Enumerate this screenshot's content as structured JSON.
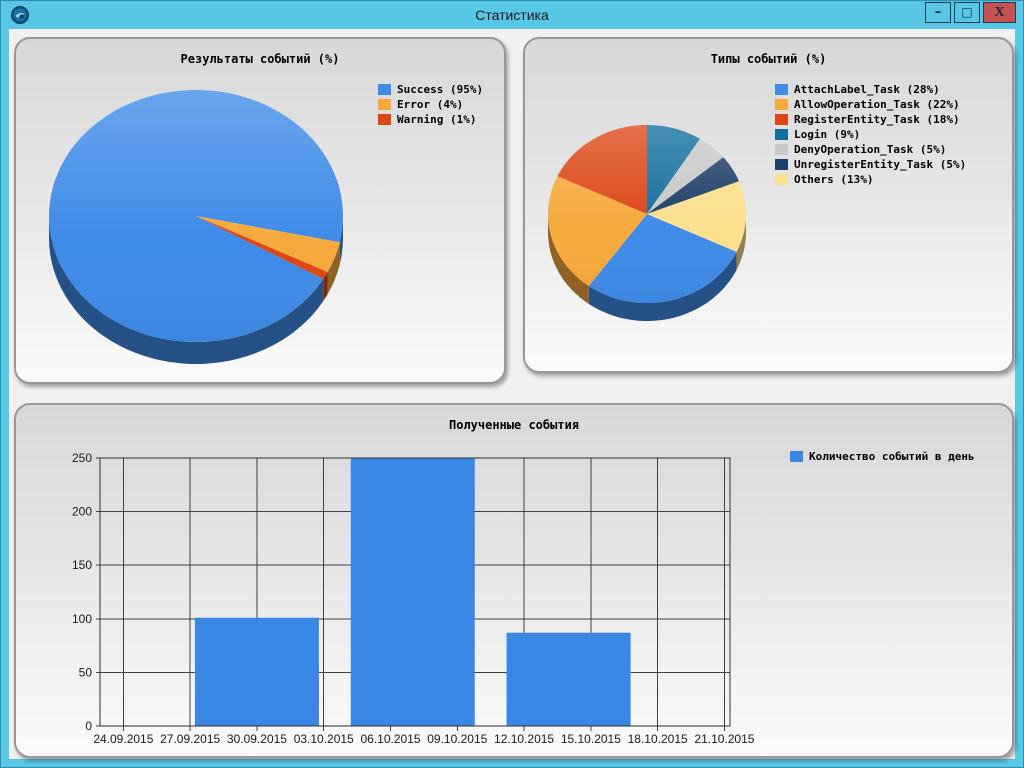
{
  "window": {
    "title": "Статистика",
    "controls": {
      "minimize": "–",
      "maximize": "□",
      "close": "X"
    }
  },
  "theme": {
    "titlebar_bg": "#58C7E6",
    "close_button_bg": "#C75050",
    "content_bg": "#F1F1F2",
    "panel_border": "#979797",
    "grid_color": "#3F3F3F",
    "accent_blue": "#3F8BE8"
  },
  "chart_data": [
    {
      "type": "pie",
      "title": "Результаты событий (%)",
      "legend_position": "right",
      "start_angle": 30,
      "slices": [
        {
          "label": "Success (95%)",
          "value": 95,
          "color": "#3F8BE8"
        },
        {
          "label": "Error (4%)",
          "value": 4,
          "color": "#F6A93C"
        },
        {
          "label": "Warning (1%)",
          "value": 1,
          "color": "#DD4716"
        }
      ]
    },
    {
      "type": "pie",
      "title": "Типы событий (%)",
      "legend_position": "right",
      "start_angle": 25.2,
      "slices": [
        {
          "label": "AttachLabel_Task (28%)",
          "value": 28,
          "color": "#3F8BE8"
        },
        {
          "label": "AllowOperation_Task (22%)",
          "value": 22,
          "color": "#F6A93C"
        },
        {
          "label": "RegisterEntity_Task (18%)",
          "value": 18,
          "color": "#DD4716"
        },
        {
          "label": "Login (9%)",
          "value": 9,
          "color": "#136F9E"
        },
        {
          "label": "DenyOperation_Task (5%)",
          "value": 5,
          "color": "#C8C8C8"
        },
        {
          "label": "UnregisterEntity_Task (5%)",
          "value": 5,
          "color": "#1F3F68"
        },
        {
          "label": "Others (13%)",
          "value": 13,
          "color": "#FBE08E"
        }
      ]
    },
    {
      "type": "bar",
      "title": "Полученные события",
      "legend": [
        {
          "label": "Количество событий в день",
          "color": "#3A87E6"
        }
      ],
      "x_tick_labels": [
        "24.09.2015",
        "27.09.2015",
        "30.09.2015",
        "03.10.2015",
        "06.10.2015",
        "09.10.2015",
        "12.10.2015",
        "15.10.2015",
        "18.10.2015",
        "21.10.2015"
      ],
      "y_ticks": [
        0,
        50,
        100,
        150,
        200,
        250
      ],
      "ylim": [
        0,
        250
      ],
      "grid": true,
      "bars": [
        {
          "date": "30.09.2015",
          "day": 6,
          "value": 101
        },
        {
          "date": "07.10.2015",
          "day": 13,
          "value": 250
        },
        {
          "date": "14.10.2015",
          "day": 20,
          "value": 87
        }
      ]
    }
  ]
}
